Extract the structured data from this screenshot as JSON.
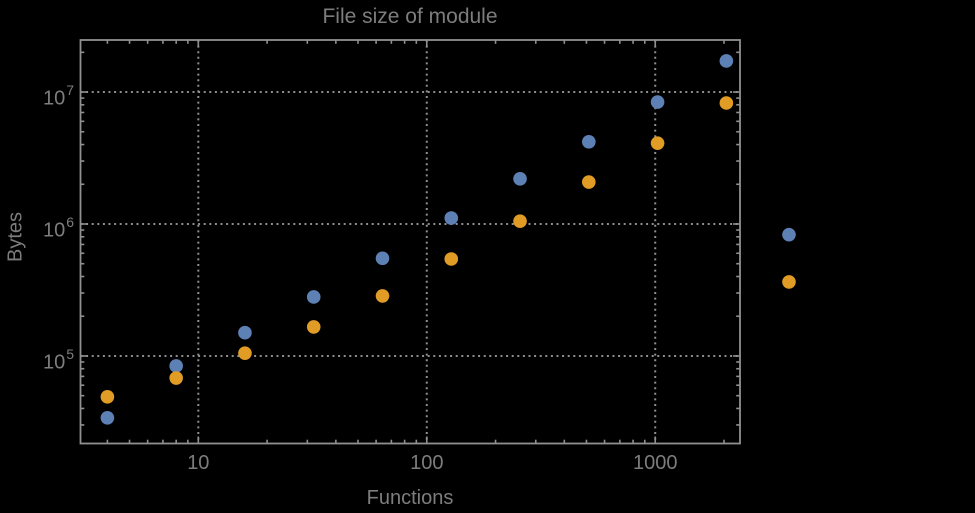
{
  "title": "File size of module",
  "colors": {
    "background": "#000000",
    "frame": "#909090",
    "grid": "#8e8e8e",
    "text": "#7d7d7d",
    "series_blue": "#5E81B5",
    "series_orange": "#E09C24"
  },
  "chart_data": {
    "type": "scatter",
    "title": "File size of module",
    "xlabel": "Functions",
    "ylabel": "Bytes",
    "x_scale": "log",
    "y_scale": "log",
    "grid": "dotted-major",
    "legend": "none",
    "xlim": [
      3.05,
      2350
    ],
    "ylim": [
      21700,
      24800000
    ],
    "x_ticks": [
      10,
      100,
      1000
    ],
    "x_tick_labels": [
      "10",
      "100",
      "1000"
    ],
    "y_ticks": [
      100000,
      1000000,
      10000000
    ],
    "y_tick_display": [
      {
        "base": "10",
        "exp": "5"
      },
      {
        "base": "10",
        "exp": "6"
      },
      {
        "base": "10",
        "exp": "7"
      }
    ],
    "x": [
      4,
      8,
      16,
      32,
      64,
      128,
      256,
      512,
      1024,
      2048,
      3850
    ],
    "series": [
      {
        "name": "series-blue",
        "color": "#5E81B5",
        "values": [
          34000,
          84000,
          150000,
          280000,
          550000,
          1110000,
          2200000,
          4200000,
          8400000,
          17200000,
          830000
        ]
      },
      {
        "name": "series-orange",
        "color": "#E09C24",
        "values": [
          49000,
          68000,
          105000,
          166000,
          285000,
          543000,
          1050000,
          2080000,
          4100000,
          8260000,
          364000
        ]
      }
    ]
  }
}
